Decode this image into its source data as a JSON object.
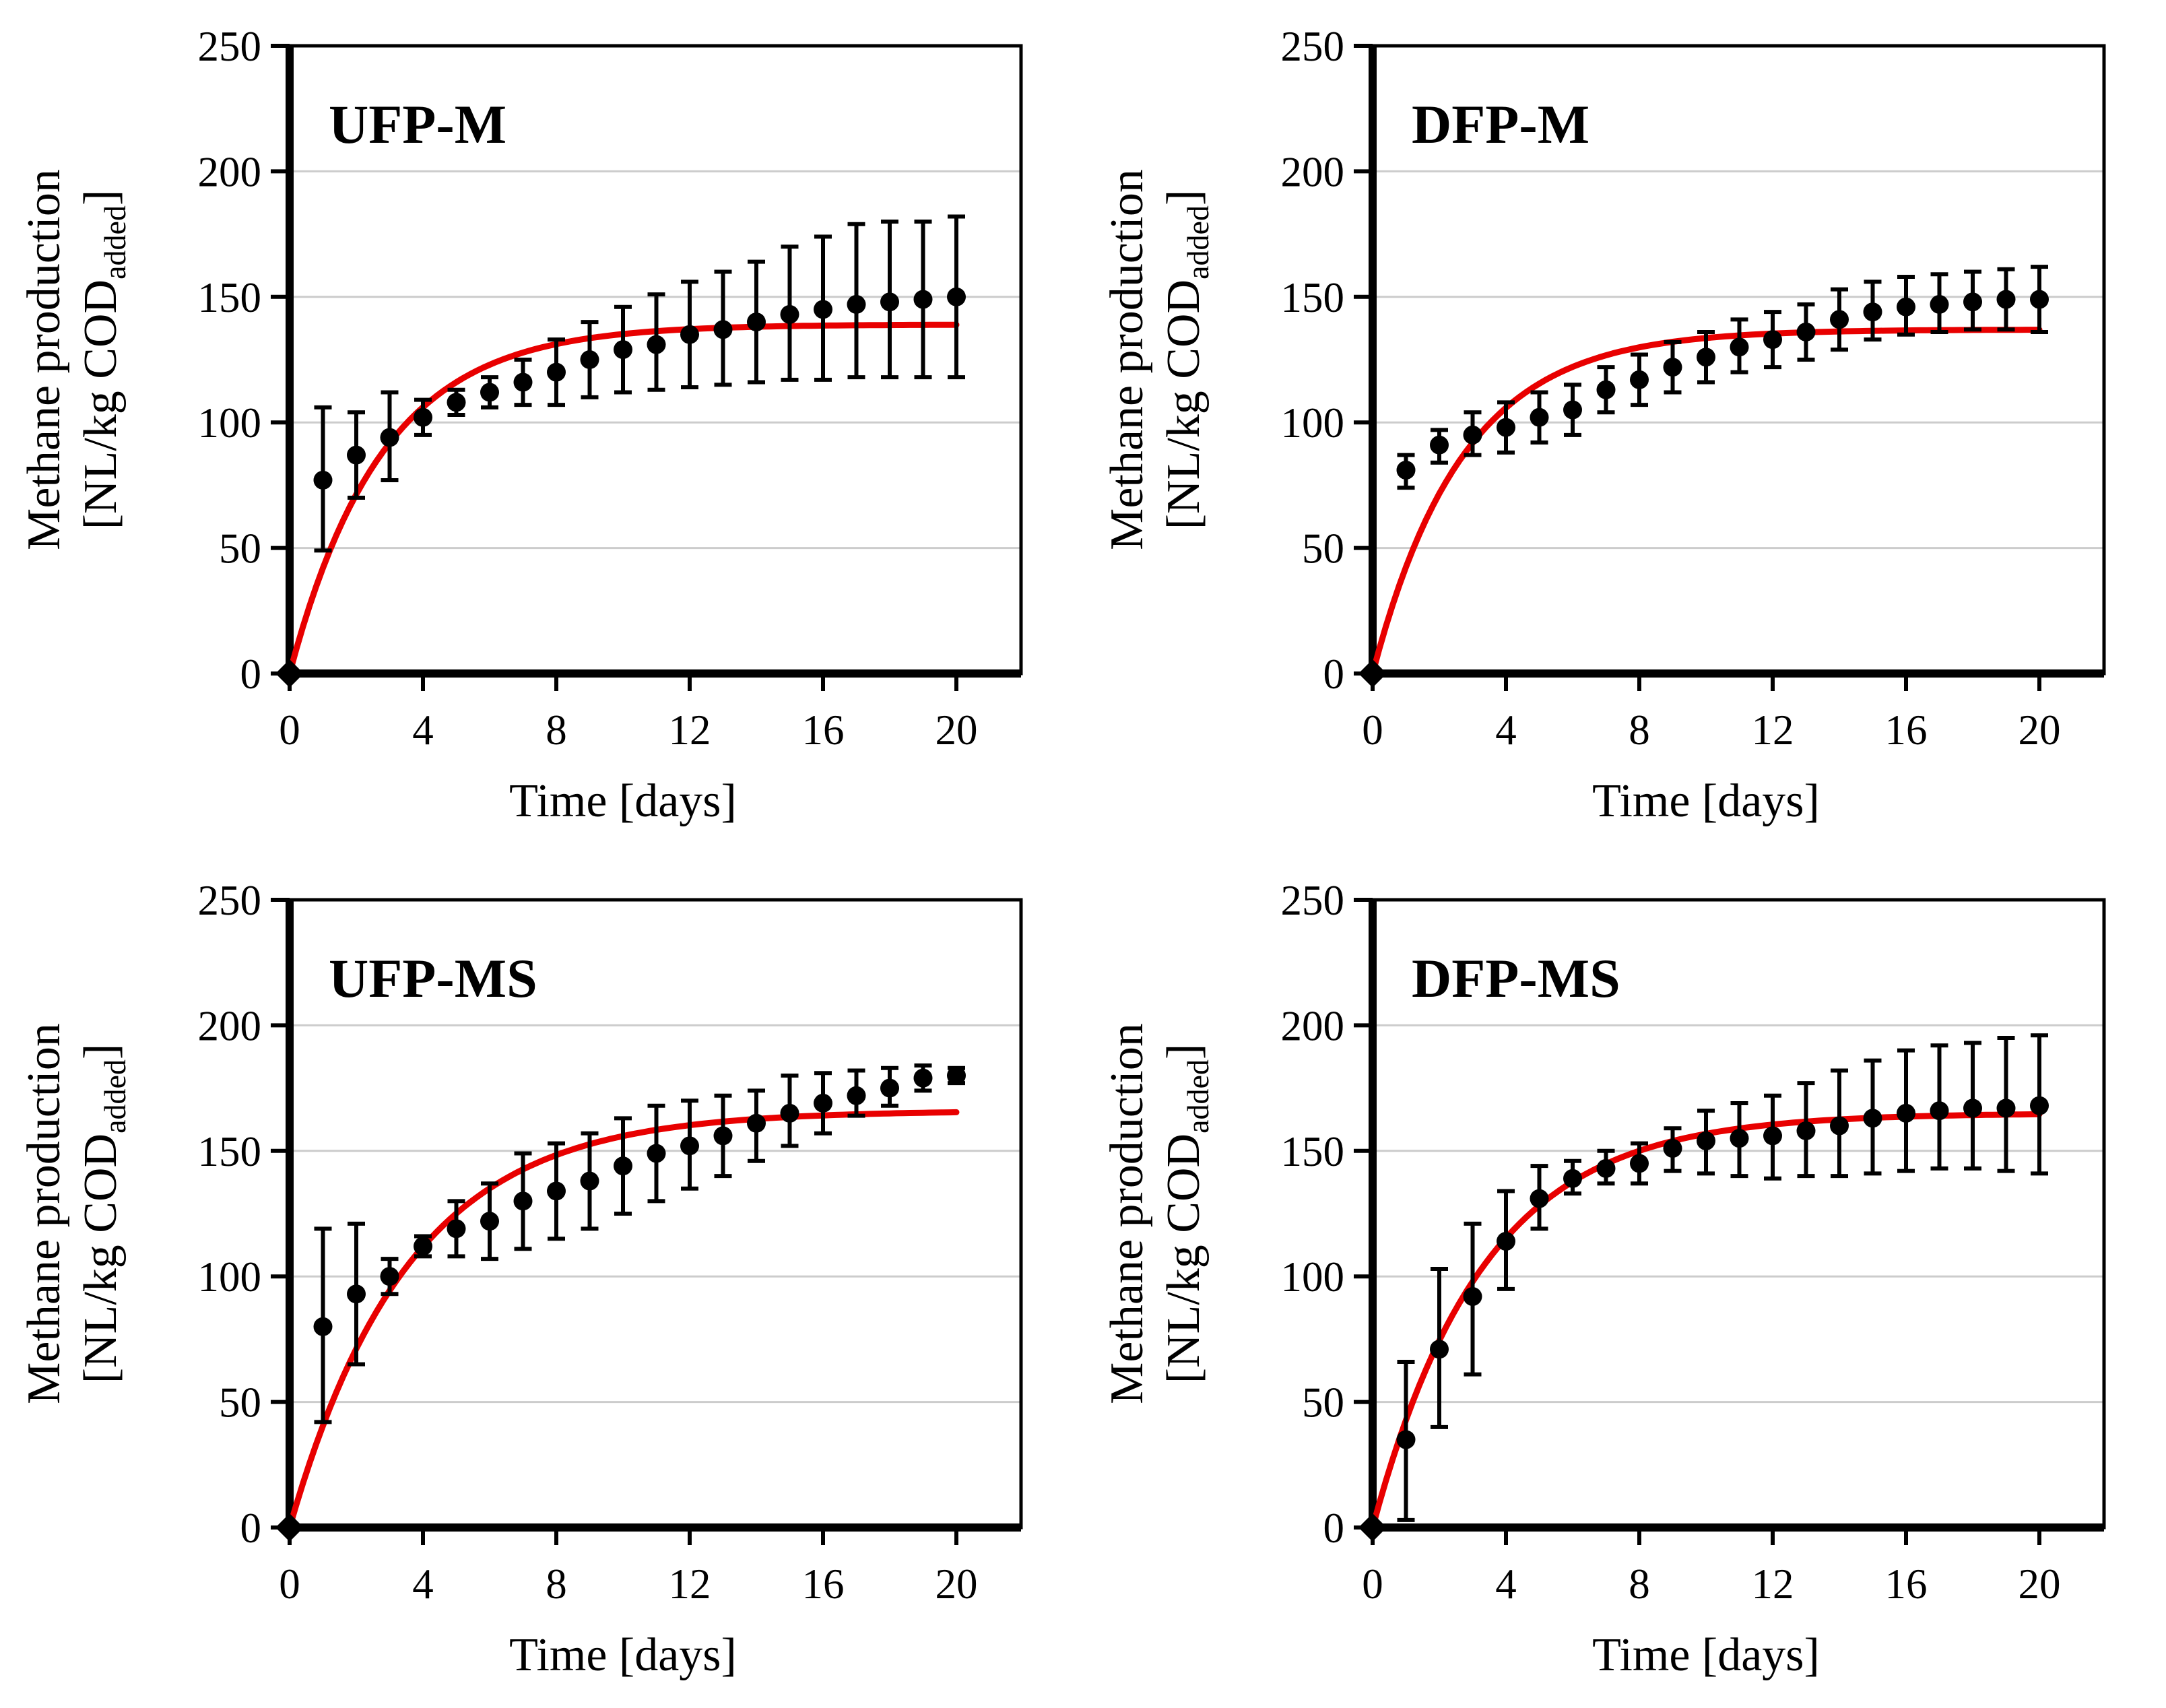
{
  "page": {
    "background": "#FFFFFF"
  },
  "colors": {
    "fit_curve": "#E80000",
    "marker": "#000000",
    "error_bar": "#000000",
    "gridline": "#CCCCCC",
    "axis": "#000000",
    "text": "#000000"
  },
  "chart_data": [
    {
      "type": "scatter",
      "title": "UFP-M",
      "xlabel": "Time [days]",
      "ylabel_line1": "Methane production",
      "ylabel_line2": "[NL/kg COD",
      "ylabel_line2_sub": "added",
      "ylabel_line2_end": "]",
      "xlim": [
        0,
        22
      ],
      "ylim": [
        0,
        250
      ],
      "xticks": [
        0,
        4,
        8,
        12,
        16,
        20
      ],
      "yticks": [
        0,
        50,
        100,
        150,
        200,
        250
      ],
      "grid": "horizontal",
      "legend": "none",
      "x": [
        0,
        1,
        2,
        3,
        4,
        5,
        6,
        7,
        8,
        9,
        10,
        11,
        12,
        13,
        14,
        15,
        16,
        17,
        18,
        19,
        20
      ],
      "y": [
        0,
        77,
        87,
        94,
        102,
        108,
        112,
        116,
        120,
        125,
        129,
        131,
        135,
        137,
        140,
        143,
        145,
        147,
        148,
        149,
        150
      ],
      "y_lo": [
        0,
        49,
        70,
        77,
        95,
        103,
        106,
        107,
        107,
        110,
        112,
        113,
        114,
        115,
        116,
        117,
        117,
        118,
        118,
        118,
        118
      ],
      "y_hi": [
        0,
        106,
        104,
        112,
        109,
        113,
        118,
        125,
        133,
        140,
        146,
        151,
        156,
        160,
        164,
        170,
        174,
        179,
        180,
        180,
        182
      ],
      "fit_curve": {
        "model": "y = B0*(1-exp(-k*t))",
        "B0": 139,
        "k": 0.36
      }
    },
    {
      "type": "scatter",
      "title": "DFP-M",
      "xlabel": "Time [days]",
      "ylabel_line1": "Methane production",
      "ylabel_line2": "[NL/kg COD",
      "ylabel_line2_sub": "added",
      "ylabel_line2_end": "]",
      "xlim": [
        0,
        22
      ],
      "ylim": [
        0,
        250
      ],
      "xticks": [
        0,
        4,
        8,
        12,
        16,
        20
      ],
      "yticks": [
        0,
        50,
        100,
        150,
        200,
        250
      ],
      "grid": "horizontal",
      "legend": "none",
      "x": [
        0,
        1,
        2,
        3,
        4,
        5,
        6,
        7,
        8,
        9,
        10,
        11,
        12,
        13,
        14,
        15,
        16,
        17,
        18,
        19,
        20
      ],
      "y": [
        0,
        81,
        91,
        95,
        98,
        102,
        105,
        113,
        117,
        122,
        126,
        130,
        133,
        136,
        141,
        144,
        146,
        147,
        148,
        149,
        149
      ],
      "y_lo": [
        0,
        74,
        84,
        87,
        88,
        92,
        95,
        104,
        107,
        112,
        116,
        120,
        122,
        125,
        129,
        133,
        135,
        136,
        137,
        137,
        136
      ],
      "y_hi": [
        0,
        87,
        97,
        104,
        108,
        112,
        115,
        122,
        127,
        132,
        136,
        141,
        144,
        147,
        153,
        156,
        158,
        159,
        160,
        161,
        162
      ],
      "fit_curve": {
        "model": "y = B0*(1-exp(-k*t))",
        "B0": 137,
        "k": 0.37
      }
    },
    {
      "type": "scatter",
      "title": "UFP-MS",
      "xlabel": "Time [days]",
      "ylabel_line1": "Methane production",
      "ylabel_line2": "[NL/kg COD",
      "ylabel_line2_sub": "added",
      "ylabel_line2_end": "]",
      "xlim": [
        0,
        22
      ],
      "ylim": [
        0,
        250
      ],
      "xticks": [
        0,
        4,
        8,
        12,
        16,
        20
      ],
      "yticks": [
        0,
        50,
        100,
        150,
        200,
        250
      ],
      "grid": "horizontal",
      "legend": "none",
      "x": [
        0,
        1,
        2,
        3,
        4,
        5,
        6,
        7,
        8,
        9,
        10,
        11,
        12,
        13,
        14,
        15,
        16,
        17,
        18,
        19,
        20
      ],
      "y": [
        0,
        80,
        93,
        100,
        112,
        119,
        122,
        130,
        134,
        138,
        144,
        149,
        152,
        156,
        161,
        165,
        169,
        172,
        175,
        179,
        180
      ],
      "y_lo": [
        0,
        42,
        65,
        93,
        108,
        108,
        107,
        111,
        115,
        119,
        125,
        130,
        135,
        140,
        146,
        152,
        157,
        164,
        168,
        174,
        177
      ],
      "y_hi": [
        0,
        119,
        121,
        107,
        116,
        130,
        137,
        149,
        153,
        157,
        163,
        168,
        170,
        172,
        174,
        180,
        181,
        182,
        183,
        184,
        183
      ],
      "fit_curve": {
        "model": "y = B0*(1-exp(-k*t))",
        "B0": 166,
        "k": 0.28
      }
    },
    {
      "type": "scatter",
      "title": "DFP-MS",
      "xlabel": "Time [days]",
      "ylabel_line1": "Methane production",
      "ylabel_line2": "[NL/kg COD",
      "ylabel_line2_sub": "added",
      "ylabel_line2_end": "]",
      "xlim": [
        0,
        22
      ],
      "ylim": [
        0,
        250
      ],
      "xticks": [
        0,
        4,
        8,
        12,
        16,
        20
      ],
      "yticks": [
        0,
        50,
        100,
        150,
        200,
        250
      ],
      "grid": "horizontal",
      "legend": "none",
      "x": [
        0,
        1,
        2,
        3,
        4,
        5,
        6,
        7,
        8,
        9,
        10,
        11,
        12,
        13,
        14,
        15,
        16,
        17,
        18,
        19,
        20
      ],
      "y": [
        0,
        35,
        71,
        92,
        114,
        131,
        139,
        143,
        145,
        151,
        154,
        155,
        156,
        158,
        160,
        163,
        165,
        166,
        167,
        167,
        168
      ],
      "y_lo": [
        0,
        3,
        40,
        61,
        95,
        119,
        133,
        137,
        137,
        142,
        141,
        140,
        139,
        140,
        140,
        141,
        142,
        143,
        143,
        142,
        141
      ],
      "y_hi": [
        0,
        66,
        103,
        121,
        134,
        144,
        146,
        150,
        153,
        159,
        166,
        169,
        172,
        177,
        182,
        186,
        190,
        192,
        193,
        195,
        196
      ],
      "fit_curve": {
        "model": "y = B0*(1-exp(-k*t))",
        "B0": 165,
        "k": 0.3
      }
    }
  ]
}
